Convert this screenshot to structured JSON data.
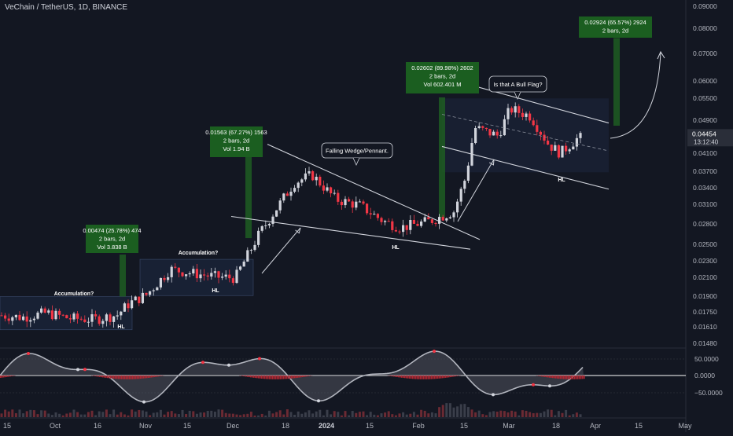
{
  "chart_data": {
    "type": "candlestick",
    "title": "VeChain / TetherUS, 1D, BINANCE",
    "price_axis": {
      "scale": "log",
      "ticks": [
        "0.09000",
        "0.08000",
        "0.07000",
        "0.06000",
        "0.05500",
        "0.04900",
        "0.04100",
        "0.03700",
        "0.03400",
        "0.03100",
        "0.02800",
        "0.02500",
        "0.02300",
        "0.02100",
        "0.01900",
        "0.01750",
        "0.01610",
        "0.01480"
      ],
      "current_price": "0.04454",
      "countdown": "13:12:40"
    },
    "oscillator_axis": {
      "ticks": [
        "50.0000",
        "0.0000",
        "−50.0000"
      ]
    },
    "time_axis": {
      "ticks": [
        "15",
        "Oct",
        "16",
        "Nov",
        "15",
        "Dec",
        "18",
        "2024",
        "15",
        "Feb",
        "15",
        "Mar",
        "18",
        "Apr",
        "15",
        "May"
      ]
    },
    "price_series": [
      {
        "date": "2023-09-12",
        "close": 0.0172
      },
      {
        "date": "2023-09-20",
        "close": 0.017
      },
      {
        "date": "2023-09-28",
        "close": 0.0174
      },
      {
        "date": "2023-10-06",
        "close": 0.0169
      },
      {
        "date": "2023-10-14",
        "close": 0.0168
      },
      {
        "date": "2023-10-22",
        "close": 0.0172
      },
      {
        "date": "2023-10-26",
        "close": 0.0183
      },
      {
        "date": "2023-11-01",
        "close": 0.0192
      },
      {
        "date": "2023-11-09",
        "close": 0.022
      },
      {
        "date": "2023-11-17",
        "close": 0.0215
      },
      {
        "date": "2023-11-25",
        "close": 0.0211
      },
      {
        "date": "2023-12-01",
        "close": 0.021
      },
      {
        "date": "2023-12-09",
        "close": 0.0265
      },
      {
        "date": "2023-12-15",
        "close": 0.0305
      },
      {
        "date": "2023-12-21",
        "close": 0.035
      },
      {
        "date": "2023-12-27",
        "close": 0.0365
      },
      {
        "date": "2024-01-04",
        "close": 0.032
      },
      {
        "date": "2024-01-12",
        "close": 0.031
      },
      {
        "date": "2024-01-20",
        "close": 0.0285
      },
      {
        "date": "2024-01-26",
        "close": 0.0275
      },
      {
        "date": "2024-02-05",
        "close": 0.0285
      },
      {
        "date": "2024-02-13",
        "close": 0.03
      },
      {
        "date": "2024-02-17",
        "close": 0.036
      },
      {
        "date": "2024-02-20",
        "close": 0.047
      },
      {
        "date": "2024-02-28",
        "close": 0.045
      },
      {
        "date": "2024-03-03",
        "close": 0.052
      },
      {
        "date": "2024-03-10",
        "close": 0.05
      },
      {
        "date": "2024-03-16",
        "close": 0.043
      },
      {
        "date": "2024-03-20",
        "close": 0.041
      },
      {
        "date": "2024-03-26",
        "close": 0.0445
      }
    ],
    "annotations": [
      {
        "label": "Accumulation?"
      },
      {
        "label": "Accumulation?"
      },
      {
        "label": "HL"
      },
      {
        "label": "HL"
      },
      {
        "label": "HL"
      },
      {
        "label": "HL"
      },
      {
        "label": "Falling Wedge/Pennant."
      },
      {
        "label": "Is that A Bull Flag?"
      }
    ],
    "measurements": [
      {
        "line1": "0.00474 (25.78%) 474",
        "line2": "2 bars, 2d",
        "line3": "Vol 3.838 B"
      },
      {
        "line1": "0.01563 (67.27%) 1563",
        "line2": "2 bars, 2d",
        "line3": "Vol 1.94 B"
      },
      {
        "line1": "0.02602 (89.98%) 2602",
        "line2": "2 bars, 2d",
        "line3": "Vol 602.401 M"
      },
      {
        "line1": "0.02924 (65.57%) 2924",
        "line2": "2 bars, 2d"
      }
    ],
    "colors": {
      "background": "#131722",
      "up": "#d1d4dc",
      "down": "#f23645",
      "measure_box": "#1b5e20",
      "grid": "#2a2e39"
    }
  }
}
